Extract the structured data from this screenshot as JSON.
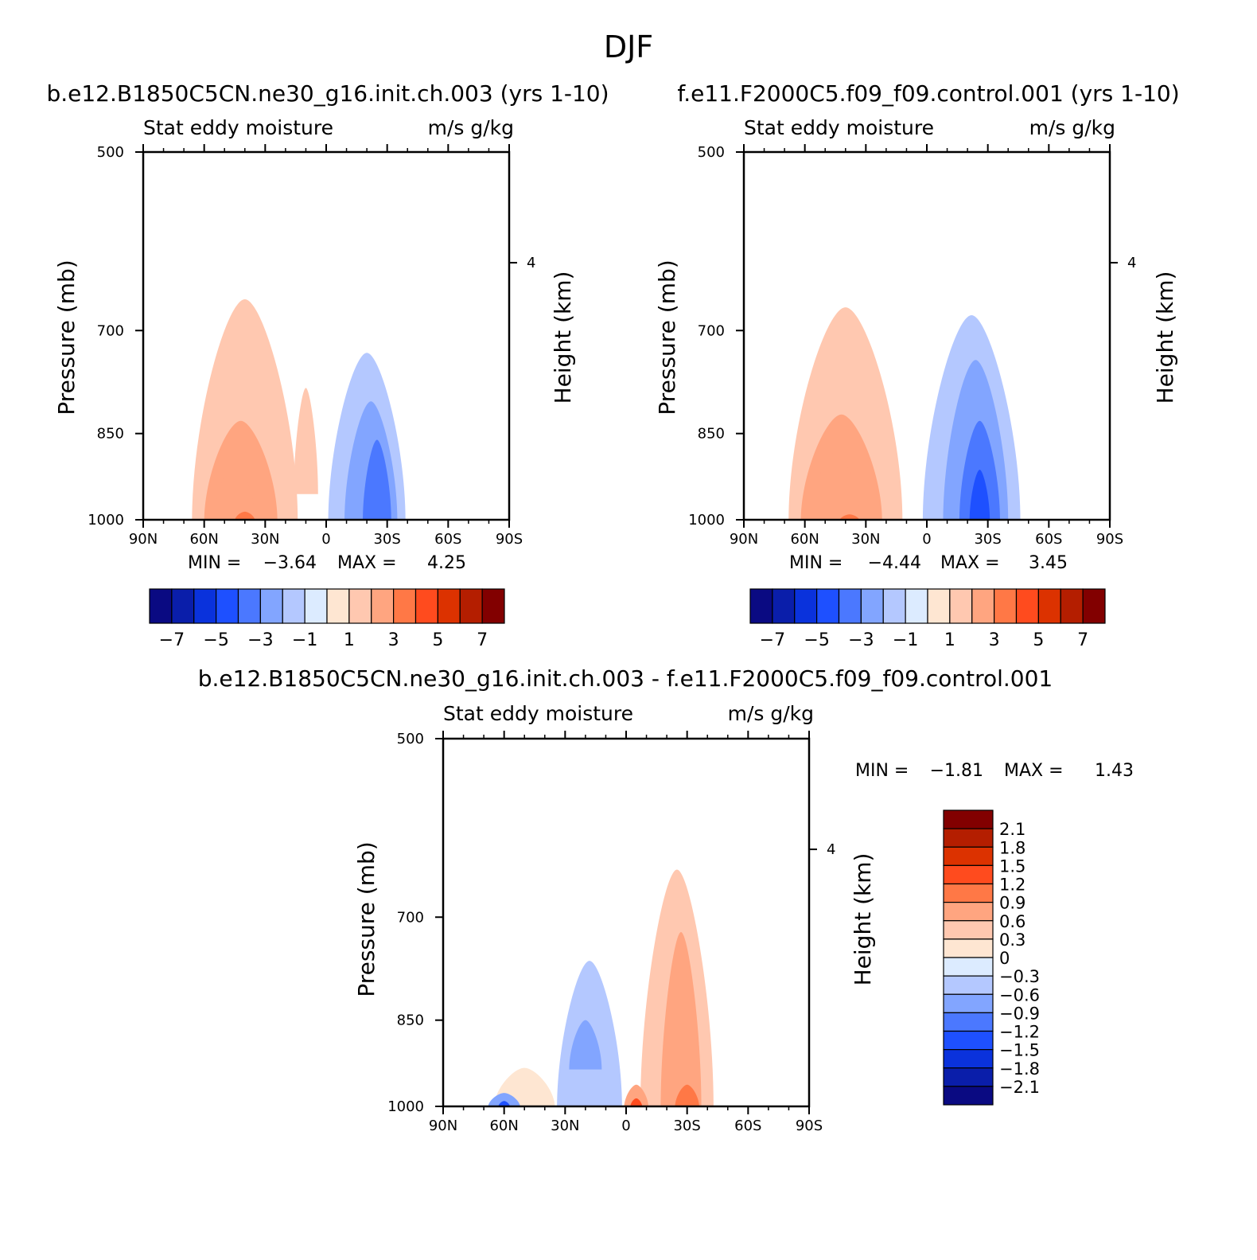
{
  "figure": {
    "title": "DJF",
    "panel_header_left": "Stat eddy moisture",
    "panel_header_right": "m/s  g/kg"
  },
  "colors": {
    "full_palette": [
      "#0a0a82",
      "#0a1eaa",
      "#0a32dc",
      "#1e50ff",
      "#4b78ff",
      "#82a5ff",
      "#b4c8ff",
      "#dcebff",
      "#fee6d2",
      "#ffc8b0",
      "#ffa580",
      "#ff7846",
      "#ff4b1e",
      "#dc3200",
      "#b41e00",
      "#820000"
    ],
    "diff_palette": [
      "#0a0a82",
      "#0a1eaa",
      "#0a32dc",
      "#1e50ff",
      "#4b78ff",
      "#82a5ff",
      "#b4c8ff",
      "#dcebff",
      "#fee6d2",
      "#ffc8b0",
      "#ffa580",
      "#ff7846",
      "#ff4b1e",
      "#dc3200",
      "#b41e00",
      "#820000"
    ]
  },
  "chart_data": [
    {
      "type": "heatmap",
      "title": "b.e12.B1850C5CN.ne30_g16.init.ch.003 (yrs 1-10)",
      "subtitle_left": "Stat eddy moisture",
      "subtitle_right": "m/s  g/kg",
      "ylabel": "Pressure (mb)",
      "ylabel_right": "Height (km)",
      "x_ticks": [
        "90N",
        "60N",
        "30N",
        "0",
        "30S",
        "60S",
        "90S"
      ],
      "y_ticks": [
        "500",
        "700",
        "850",
        "1000"
      ],
      "y_right_ticks": [
        "4"
      ],
      "x_range": [
        90,
        -90
      ],
      "y_range": [
        1000,
        500
      ],
      "y_scale": "log",
      "min_label": "MIN =",
      "min_value": "-3.64",
      "max_label": "MAX =",
      "max_value": "4.25",
      "colorbar_orientation": "horizontal",
      "colorbar_labels": [
        "-7",
        "-5",
        "-3",
        "-1",
        "1",
        "3",
        "5",
        "7"
      ],
      "contour_levels": [
        -7,
        -6,
        -5,
        -4,
        -3,
        -2,
        -1,
        0,
        1,
        2,
        3,
        4,
        5,
        6,
        7
      ],
      "features": [
        {
          "lat": 40,
          "p": 1000,
          "value": 4.25
        },
        {
          "lat": -25,
          "p": 900,
          "value": -3.64
        }
      ]
    },
    {
      "type": "heatmap",
      "title": "f.e11.F2000C5.f09_f09.control.001 (yrs 1-10)",
      "subtitle_left": "Stat eddy moisture",
      "subtitle_right": "m/s  g/kg",
      "ylabel": "Pressure (mb)",
      "ylabel_right": "Height (km)",
      "x_ticks": [
        "90N",
        "60N",
        "30N",
        "0",
        "30S",
        "60S",
        "90S"
      ],
      "y_ticks": [
        "500",
        "700",
        "850",
        "1000"
      ],
      "y_right_ticks": [
        "4"
      ],
      "x_range": [
        90,
        -90
      ],
      "y_range": [
        1000,
        500
      ],
      "y_scale": "log",
      "min_label": "MIN =",
      "min_value": "-4.44",
      "max_label": "MAX =",
      "max_value": "3.45",
      "colorbar_orientation": "horizontal",
      "colorbar_labels": [
        "-7",
        "-5",
        "-3",
        "-1",
        "1",
        "3",
        "5",
        "7"
      ],
      "contour_levels": [
        -7,
        -6,
        -5,
        -4,
        -3,
        -2,
        -1,
        0,
        1,
        2,
        3,
        4,
        5,
        6,
        7
      ],
      "features": [
        {
          "lat": 38,
          "p": 1000,
          "value": 3.45
        },
        {
          "lat": -27,
          "p": 940,
          "value": -4.44
        }
      ]
    },
    {
      "type": "heatmap",
      "title": "b.e12.B1850C5CN.ne30_g16.init.ch.003 - f.e11.F2000C5.f09_f09.control.001",
      "subtitle_left": "Stat eddy moisture",
      "subtitle_right": "m/s  g/kg",
      "ylabel": "Pressure (mb)",
      "ylabel_right": "Height (km)",
      "x_ticks": [
        "90N",
        "60N",
        "30N",
        "0",
        "30S",
        "60S",
        "90S"
      ],
      "y_ticks": [
        "500",
        "700",
        "850",
        "1000"
      ],
      "y_right_ticks": [
        "4"
      ],
      "x_range": [
        90,
        -90
      ],
      "y_range": [
        1000,
        500
      ],
      "y_scale": "log",
      "min_label": "MIN =",
      "min_value": "-1.81",
      "max_label": "MAX =",
      "max_value": "1.43",
      "colorbar_orientation": "vertical",
      "colorbar_labels": [
        "2.1",
        "1.8",
        "1.5",
        "1.2",
        "0.9",
        "0.6",
        "0.3",
        "0",
        "-0.3",
        "-0.6",
        "-0.9",
        "-1.2",
        "-1.5",
        "-1.8",
        "-2.1"
      ],
      "contour_levels": [
        -2.1,
        -1.8,
        -1.5,
        -1.2,
        -0.9,
        -0.6,
        -0.3,
        0,
        0.3,
        0.6,
        0.9,
        1.2,
        1.5,
        1.8,
        2.1
      ],
      "features": [
        {
          "lat": 60,
          "p": 990,
          "value": -1.81
        },
        {
          "lat": -5,
          "p": 990,
          "value": 1.43
        }
      ]
    }
  ]
}
